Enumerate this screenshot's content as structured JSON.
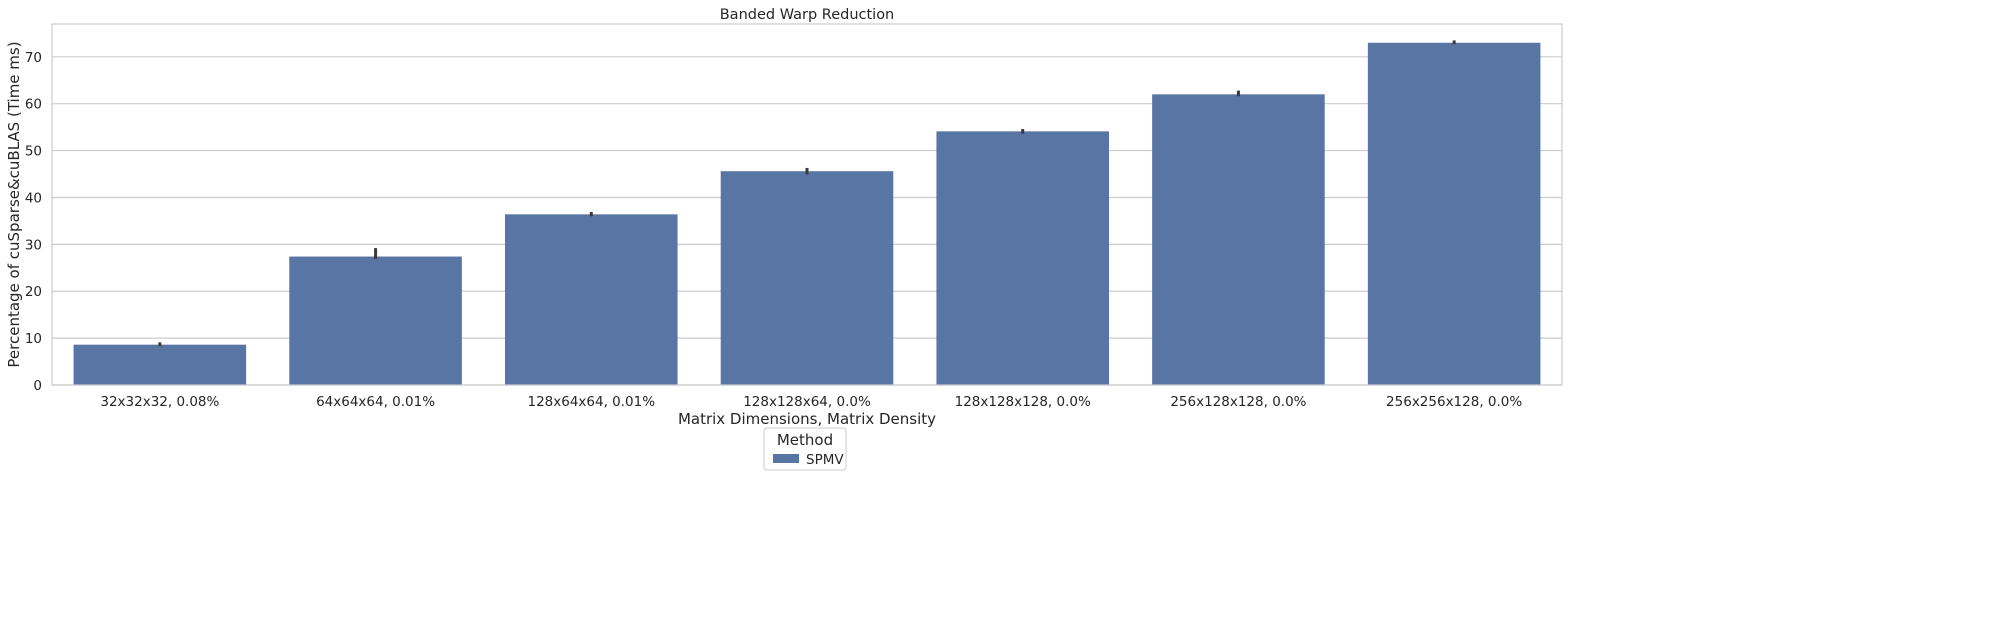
{
  "chart_data": {
    "type": "bar",
    "title": "Banded Warp Reduction",
    "xlabel": "Matrix Dimensions, Matrix Density",
    "ylabel": "Percentage of cuSparse&cuBLAS (Time ms)",
    "categories": [
      "32x32x32, 0.08%",
      "64x64x64, 0.01%",
      "128x64x64, 0.01%",
      "128x128x64, 0.0%",
      "128x128x128, 0.0%",
      "256x128x128, 0.0%",
      "256x256x128, 0.0%"
    ],
    "series": [
      {
        "name": "SPMV",
        "values": [
          8.6,
          27.4,
          36.4,
          45.6,
          54.1,
          62.0,
          73.0
        ],
        "error_low": [
          8.3,
          26.9,
          36.0,
          44.9,
          53.6,
          61.6,
          72.7
        ],
        "error_high": [
          9.1,
          29.2,
          36.9,
          46.3,
          54.6,
          62.8,
          73.5
        ],
        "color": "#5875a4"
      }
    ],
    "ylim": [
      0,
      77
    ],
    "yticks": [
      0,
      10,
      20,
      30,
      40,
      50,
      60,
      70
    ],
    "grid": true,
    "legend": {
      "title": "Method",
      "placement": "bottom-center"
    }
  }
}
